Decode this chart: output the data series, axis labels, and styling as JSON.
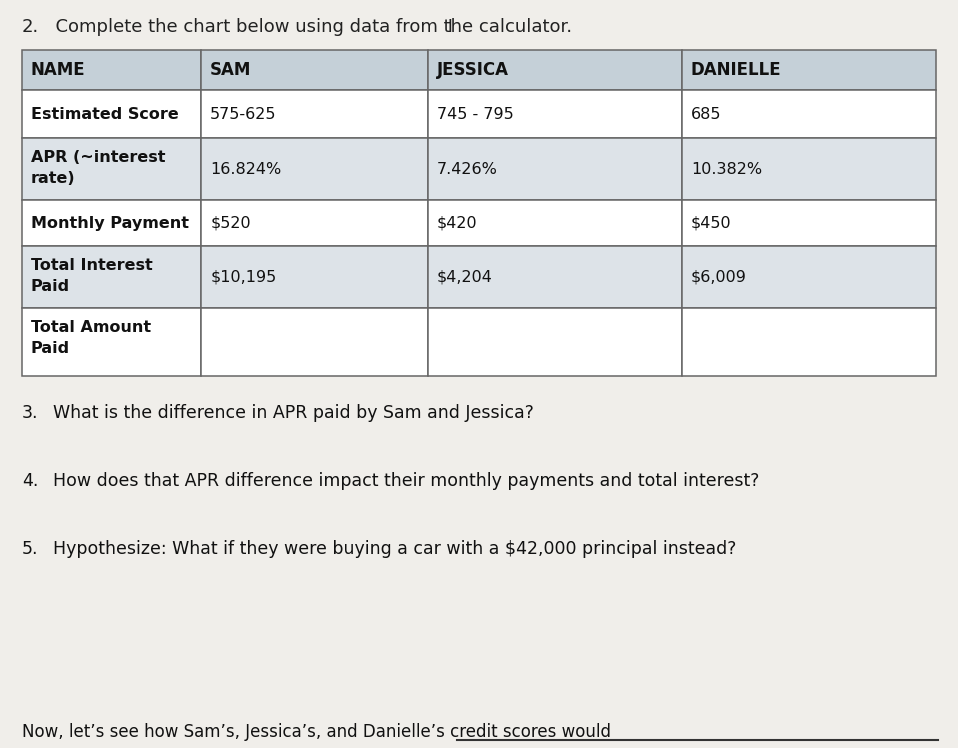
{
  "title_num": "2.",
  "title_text": "  Complete the chart below using data from the calculator.",
  "title_cursor": "     I",
  "background_color": "#f0eeea",
  "table_bg_header": "#c5d0d8",
  "table_bg_white": "#ffffff",
  "table_bg_light": "#dde3e8",
  "table_border_color": "#666666",
  "col_headers": [
    "NAME",
    "SAM",
    "JESSICA",
    "DANIELLE"
  ],
  "rows": [
    {
      "label": "Estimated Score",
      "sam": "575-625",
      "jessica": "745 - 795",
      "danielle": "685"
    },
    {
      "label": "APR (~interest\nrate)",
      "sam": "16.824%",
      "jessica": "7.426%",
      "danielle": "10.382%"
    },
    {
      "label": "Monthly Payment",
      "sam": "$520",
      "jessica": "$420",
      "danielle": "$450"
    },
    {
      "label": "Total Interest\nPaid",
      "sam": "$10,195",
      "jessica": "$4,204",
      "danielle": "$6,009"
    },
    {
      "label": "Total Amount\nPaid",
      "sam": "",
      "jessica": "",
      "danielle": ""
    }
  ],
  "questions": [
    [
      "3.",
      "  What is the difference in APR paid by Sam and Jessica?"
    ],
    [
      "4.",
      "  How does that APR difference impact their monthly payments and total interest?"
    ],
    [
      "5.",
      "  Hypothesize: What if they were buying a car with a $42,000 principal instead?"
    ]
  ],
  "footer": "Now, let’s see how Sam’s, Jessica’s, and Danielle’s credit scores would"
}
